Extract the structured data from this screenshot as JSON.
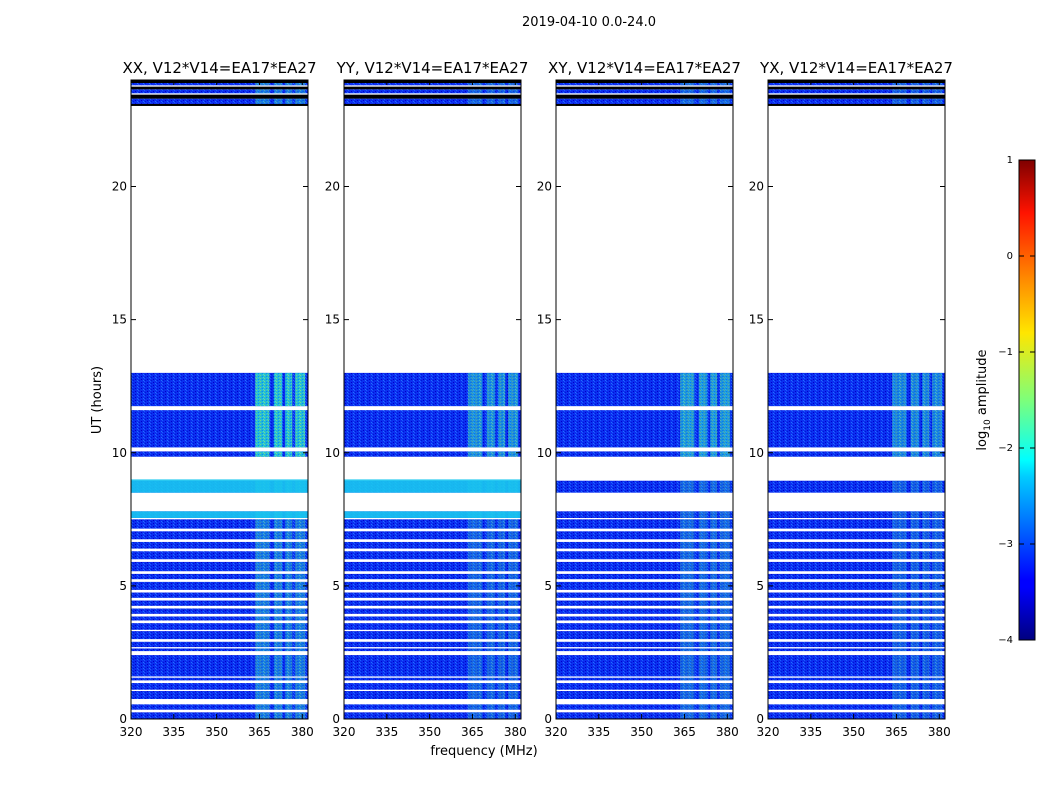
{
  "suptitle": "2019-04-10 0.0-24.0",
  "xlabel": "frequency (MHz)",
  "ylabel": "UT (hours)",
  "colorbar": {
    "label": "log10 amplitude",
    "label_base": "log",
    "label_sub": "10",
    "label_rest": " amplitude",
    "ticks": [
      "1",
      "0",
      "−1",
      "−2",
      "−3",
      "−4"
    ],
    "tick_values": [
      1,
      0,
      -1,
      -2,
      -3,
      -4
    ],
    "range": [
      -4,
      1
    ],
    "colormap": "jet"
  },
  "chart_data": {
    "type": "heatmap",
    "title": "2019-04-10 0.0-24.0",
    "xlabel": "frequency (MHz)",
    "ylabel": "UT (hours)",
    "xlim": [
      320,
      382
    ],
    "ylim": [
      0,
      24
    ],
    "xticks": [
      320,
      335,
      350,
      365,
      380
    ],
    "yticks": [
      0,
      5,
      10,
      15,
      20
    ],
    "hot_channels_mhz": [
      [
        363.5,
        368.5
      ],
      [
        370,
        373
      ],
      [
        374,
        376.5
      ],
      [
        377.5,
        381
      ]
    ],
    "panels": [
      {
        "title": "XX, V12*V14=EA17*EA27",
        "high_amp_hours": [
          [
            8.5,
            9.0
          ],
          [
            7.55,
            7.8
          ]
        ],
        "rfi_strength": 0.8
      },
      {
        "title": "YY, V12*V14=EA17*EA27",
        "high_amp_hours": [
          [
            8.5,
            9.0
          ],
          [
            7.55,
            7.8
          ]
        ],
        "rfi_strength": 0.55
      },
      {
        "title": "XY, V12*V14=EA17*EA27",
        "high_amp_hours": [],
        "rfi_strength": 0.6
      },
      {
        "title": "YX, V12*V14=EA17*EA27",
        "high_amp_hours": [],
        "rfi_strength": 0.5
      }
    ],
    "data_segments_hours": [
      [
        0.0,
        0.25
      ],
      [
        0.35,
        0.55
      ],
      [
        0.75,
        1.05
      ],
      [
        1.1,
        1.35
      ],
      [
        1.45,
        1.55
      ],
      [
        1.6,
        2.4
      ],
      [
        2.55,
        2.65
      ],
      [
        2.7,
        2.9
      ],
      [
        3.0,
        3.3
      ],
      [
        3.35,
        3.6
      ],
      [
        3.7,
        3.85
      ],
      [
        3.95,
        4.15
      ],
      [
        4.25,
        4.45
      ],
      [
        4.55,
        4.75
      ],
      [
        4.85,
        5.15
      ],
      [
        5.25,
        5.45
      ],
      [
        5.55,
        5.9
      ],
      [
        6.0,
        6.3
      ],
      [
        6.4,
        6.65
      ],
      [
        6.75,
        7.05
      ],
      [
        7.15,
        7.5
      ],
      [
        7.55,
        7.8
      ],
      [
        8.5,
        8.95
      ],
      [
        9.85,
        10.05
      ],
      [
        10.2,
        11.6
      ],
      [
        11.75,
        13.0
      ],
      [
        23.1,
        23.3
      ],
      [
        23.5,
        23.65
      ],
      [
        23.8,
        23.9
      ],
      [
        24.0,
        24.0
      ]
    ],
    "black_flag_hours": [
      [
        23.05,
        23.1
      ],
      [
        23.3,
        23.45
      ],
      [
        23.65,
        23.75
      ],
      [
        23.9,
        23.98
      ]
    ]
  }
}
